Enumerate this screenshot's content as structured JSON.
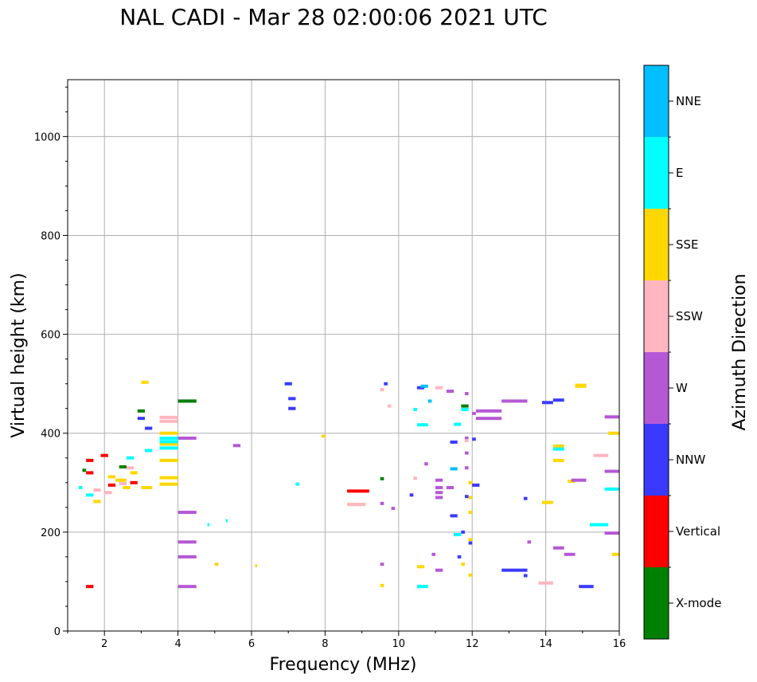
{
  "chart_data": {
    "type": "scatter",
    "title": "NAL CADI - Mar 28 02:00:06 2021 UTC",
    "xlabel": "Frequency (MHz)",
    "ylabel": "Virtual height (km)",
    "xlim": [
      1,
      16
    ],
    "ylim": [
      0,
      1115
    ],
    "xticks": [
      2,
      4,
      6,
      8,
      10,
      12,
      14,
      16
    ],
    "yticks": [
      0,
      200,
      400,
      600,
      800,
      1000
    ],
    "grid": true,
    "colorbar": {
      "label": "Azimuth Direction",
      "categories": [
        "X-mode",
        "Vertical",
        "NNW",
        "W",
        "SSW",
        "SSE",
        "E",
        "NNE"
      ],
      "colors": {
        "X-mode": "#008000",
        "Vertical": "#ff0000",
        "NNW": "#3a3aff",
        "W": "#b558d6",
        "SSW": "#ffb6c1",
        "SSE": "#ffd700",
        "E": "#00ffff",
        "NNE": "#00bfff"
      }
    },
    "series": [
      {
        "name": "SSE",
        "points": [
          [
            3.5,
            310,
            4.0
          ],
          [
            3.5,
            297,
            4.0
          ],
          [
            3.5,
            345,
            4.0
          ],
          [
            3.5,
            378,
            4.0
          ],
          [
            3.5,
            400,
            4.0
          ],
          [
            8.6,
            256,
            9.1
          ],
          [
            14.2,
            374,
            14.5
          ],
          [
            14.2,
            345,
            14.5
          ],
          [
            14.8,
            495,
            15.1
          ],
          [
            15.7,
            400,
            16.0
          ],
          [
            15.8,
            155,
            16.0
          ],
          [
            1.7,
            262,
            1.9
          ],
          [
            2.3,
            305,
            2.6
          ],
          [
            2.5,
            290,
            2.7
          ],
          [
            3.0,
            290,
            3.3
          ],
          [
            3.0,
            503,
            3.2
          ],
          [
            10.5,
            130,
            10.7
          ],
          [
            11.7,
            135,
            11.8
          ],
          [
            11.9,
            240,
            12.0
          ],
          [
            11.9,
            185,
            12.0
          ],
          [
            11.9,
            270,
            12.0
          ],
          [
            14.6,
            303,
            14.8
          ],
          [
            13.9,
            260,
            14.2
          ],
          [
            5.0,
            135,
            5.1
          ],
          [
            6.1,
            132,
            6.15
          ],
          [
            7.9,
            394,
            8.0
          ],
          [
            9.5,
            92,
            9.6
          ],
          [
            11.9,
            113,
            12.0
          ],
          [
            14.8,
            497,
            15.1
          ],
          [
            11.9,
            300,
            12.0
          ],
          [
            2.1,
            312,
            2.3
          ],
          [
            2.7,
            320,
            2.9
          ]
        ]
      },
      {
        "name": "E",
        "points": [
          [
            3.5,
            383,
            4.0
          ],
          [
            3.5,
            370,
            4.0
          ],
          [
            3.5,
            390,
            4.0
          ],
          [
            14.2,
            368,
            14.5
          ],
          [
            10.5,
            90,
            10.8
          ],
          [
            15.2,
            215,
            15.7
          ],
          [
            15.6,
            287,
            16.0
          ],
          [
            10.5,
            417,
            10.8
          ],
          [
            10.4,
            448,
            10.5
          ],
          [
            7.2,
            297,
            7.3
          ],
          [
            1.5,
            275,
            1.7
          ],
          [
            1.3,
            290,
            1.4
          ],
          [
            3.1,
            365,
            3.3
          ],
          [
            2.6,
            350,
            2.8
          ],
          [
            11.7,
            448,
            11.9
          ],
          [
            4.8,
            215,
            4.85
          ],
          [
            5.3,
            223,
            5.35
          ],
          [
            11.5,
            195,
            11.7
          ],
          [
            11.5,
            418,
            11.7
          ]
        ]
      },
      {
        "name": "NNW",
        "points": [
          [
            6.9,
            500,
            7.1
          ],
          [
            7.0,
            470,
            7.2
          ],
          [
            7.0,
            450,
            7.2
          ],
          [
            10.5,
            492,
            10.7
          ],
          [
            10.3,
            275,
            10.4
          ],
          [
            11.4,
            382,
            11.6
          ],
          [
            11.4,
            233,
            11.6
          ],
          [
            11.9,
            178,
            12.0
          ],
          [
            12.0,
            388,
            12.1
          ],
          [
            12.0,
            295,
            12.2
          ],
          [
            12.8,
            123,
            13.5
          ],
          [
            13.4,
            268,
            13.5
          ],
          [
            13.9,
            462,
            14.2
          ],
          [
            14.2,
            467,
            14.5
          ],
          [
            14.9,
            90,
            15.3
          ],
          [
            11.8,
            272,
            11.9
          ],
          [
            9.6,
            500,
            9.7
          ],
          [
            11.7,
            200,
            11.8
          ],
          [
            11.6,
            150,
            11.7
          ],
          [
            13.4,
            112,
            13.5
          ],
          [
            3.1,
            410,
            3.3
          ],
          [
            2.9,
            430,
            3.1
          ]
        ]
      },
      {
        "name": "W",
        "points": [
          [
            4.0,
            465,
            4.5
          ],
          [
            4.0,
            390,
            4.5
          ],
          [
            4.0,
            240,
            4.5
          ],
          [
            4.0,
            180,
            4.5
          ],
          [
            4.0,
            150,
            4.5
          ],
          [
            4.0,
            90,
            4.5
          ],
          [
            5.5,
            375,
            5.7
          ],
          [
            10.7,
            338,
            10.8
          ],
          [
            11.0,
            305,
            11.2
          ],
          [
            11.0,
            290,
            11.2
          ],
          [
            11.0,
            270,
            11.2
          ],
          [
            11.0,
            280,
            11.2
          ],
          [
            11.3,
            485,
            11.5
          ],
          [
            11.3,
            290,
            11.5
          ],
          [
            11.8,
            480,
            11.9
          ],
          [
            11.8,
            330,
            11.9
          ],
          [
            11.8,
            360,
            11.9
          ],
          [
            11.8,
            390,
            11.9
          ],
          [
            12.1,
            445,
            12.8
          ],
          [
            12.1,
            430,
            12.8
          ],
          [
            12.8,
            465,
            13.5
          ],
          [
            14.2,
            168,
            14.5
          ],
          [
            14.5,
            155,
            14.8
          ],
          [
            14.7,
            305,
            15.1
          ],
          [
            15.6,
            433,
            16.0
          ],
          [
            15.6,
            323,
            16.0
          ],
          [
            15.6,
            198,
            16.0
          ],
          [
            9.5,
            258,
            9.6
          ],
          [
            9.8,
            248,
            9.9
          ],
          [
            11.0,
            123,
            11.2
          ],
          [
            10.9,
            155,
            11.0
          ],
          [
            9.5,
            135,
            9.6
          ],
          [
            13.5,
            180,
            13.6
          ],
          [
            12.0,
            440,
            12.1
          ]
        ]
      },
      {
        "name": "SSW",
        "points": [
          [
            3.5,
            432,
            4.0
          ],
          [
            3.5,
            424,
            4.0
          ],
          [
            8.6,
            256,
            9.1
          ],
          [
            15.3,
            355,
            15.7
          ],
          [
            13.8,
            97,
            14.2
          ],
          [
            11.0,
            492,
            11.2
          ],
          [
            1.7,
            285,
            1.9
          ],
          [
            2.0,
            280,
            2.2
          ],
          [
            9.7,
            455,
            9.8
          ],
          [
            10.4,
            309,
            10.5
          ],
          [
            9.5,
            488,
            9.6
          ],
          [
            2.4,
            298,
            2.6
          ],
          [
            2.6,
            330,
            2.8
          ],
          [
            11.8,
            385,
            11.9
          ]
        ]
      },
      {
        "name": "Vertical",
        "points": [
          [
            8.6,
            283,
            9.2
          ],
          [
            1.5,
            90,
            1.7
          ],
          [
            1.5,
            345,
            1.7
          ],
          [
            1.5,
            320,
            1.7
          ],
          [
            2.1,
            295,
            2.3
          ],
          [
            2.7,
            300,
            2.9
          ],
          [
            1.9,
            355,
            2.1
          ]
        ]
      },
      {
        "name": "X-mode",
        "points": [
          [
            4.0,
            465,
            4.5
          ],
          [
            9.5,
            308,
            9.6
          ],
          [
            2.9,
            445,
            3.1
          ],
          [
            2.4,
            332,
            2.6
          ],
          [
            1.4,
            325,
            1.5
          ],
          [
            11.7,
            455,
            11.9
          ]
        ]
      },
      {
        "name": "NNE",
        "points": [
          [
            10.8,
            465,
            10.9
          ],
          [
            10.6,
            495,
            10.8
          ],
          [
            11.4,
            328,
            11.6
          ]
        ]
      }
    ]
  }
}
